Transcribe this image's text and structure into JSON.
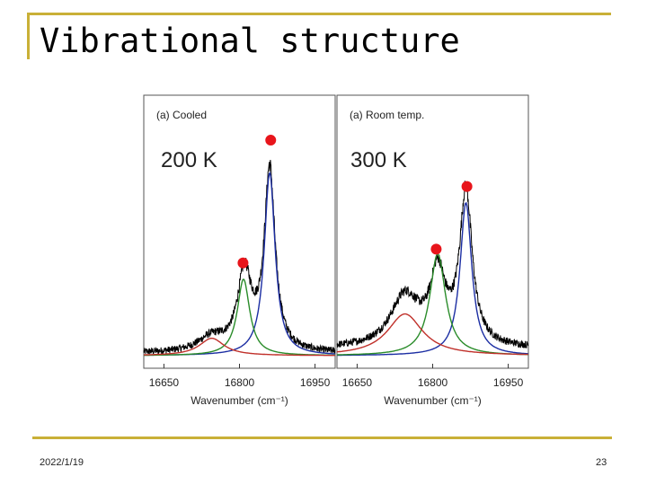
{
  "slide": {
    "title": "Vibrational structure",
    "date": "2022/1/19",
    "page": "23"
  },
  "colors": {
    "decoration": "#c9b037",
    "peak_marker": "#e8151b",
    "experiment": "#000000",
    "blue_fit": "#1c2ea3",
    "green_fit": "#2a8c2a",
    "red_fit": "#c0302a"
  },
  "chart_data": [
    {
      "type": "line",
      "panel_label": "(a) Cooled",
      "temperature_label": "200 K",
      "xlabel": "Wavenumber (cm⁻¹)",
      "xlim": [
        16610,
        16990
      ],
      "x_ticks": [
        16650,
        16800,
        16950
      ],
      "ylim": [
        0,
        1
      ],
      "y_ticks_shown": false,
      "grid": false,
      "series": [
        {
          "color_key": "experiment",
          "style": "noisy",
          "components": [
            {
              "center": 16860,
              "height": 0.78,
              "width": 26
            },
            {
              "center": 16810,
              "height": 0.33,
              "width": 34
            },
            {
              "center": 16745,
              "height": 0.06,
              "width": 65
            }
          ],
          "baseline": 0.01
        },
        {
          "color_key": "blue_fit",
          "style": "smooth",
          "components": [
            {
              "center": 16860,
              "height": 0.79,
              "width": 26
            }
          ],
          "baseline": 0.0
        },
        {
          "color_key": "green_fit",
          "style": "smooth",
          "components": [
            {
              "center": 16808,
              "height": 0.33,
              "width": 30
            }
          ],
          "baseline": 0.0
        },
        {
          "color_key": "red_fit",
          "style": "smooth",
          "components": [
            {
              "center": 16745,
              "height": 0.075,
              "width": 60
            }
          ],
          "baseline": 0.0
        }
      ],
      "markers": [
        {
          "x": 16862,
          "y": 0.93
        },
        {
          "x": 16807,
          "y": 0.4
        }
      ]
    },
    {
      "type": "line",
      "panel_label": "(a) Room temp.",
      "temperature_label": "300 K",
      "xlabel": "Wavenumber (cm⁻¹)",
      "xlim": [
        16610,
        16990
      ],
      "x_ticks": [
        16650,
        16800,
        16950
      ],
      "ylim": [
        0,
        1
      ],
      "y_ticks_shown": false,
      "grid": false,
      "series": [
        {
          "color_key": "experiment",
          "style": "noisy",
          "components": [
            {
              "center": 16866,
              "height": 0.66,
              "width": 30
            },
            {
              "center": 16810,
              "height": 0.3,
              "width": 36
            },
            {
              "center": 16745,
              "height": 0.22,
              "width": 70
            }
          ],
          "baseline": 0.03
        },
        {
          "color_key": "blue_fit",
          "style": "smooth",
          "components": [
            {
              "center": 16866,
              "height": 0.66,
              "width": 28
            }
          ],
          "baseline": 0.0
        },
        {
          "color_key": "green_fit",
          "style": "smooth",
          "components": [
            {
              "center": 16810,
              "height": 0.44,
              "width": 38
            }
          ],
          "baseline": 0.0
        },
        {
          "color_key": "red_fit",
          "style": "smooth",
          "components": [
            {
              "center": 16745,
              "height": 0.18,
              "width": 85
            }
          ],
          "baseline": 0.0
        }
      ],
      "markers": [
        {
          "x": 16868,
          "y": 0.73
        },
        {
          "x": 16807,
          "y": 0.46
        }
      ]
    }
  ]
}
